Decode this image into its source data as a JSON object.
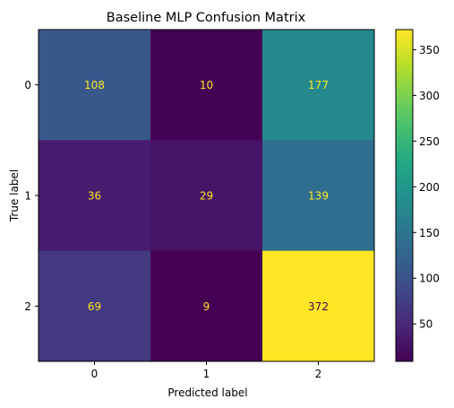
{
  "chart_data": {
    "type": "heatmap",
    "title": "Baseline MLP Confusion Matrix",
    "xlabel": "Predicted label",
    "ylabel": "True label",
    "x_categories": [
      "0",
      "1",
      "2"
    ],
    "y_categories": [
      "0",
      "1",
      "2"
    ],
    "values": [
      [
        108,
        10,
        177
      ],
      [
        36,
        29,
        139
      ],
      [
        69,
        9,
        372
      ]
    ],
    "colormap": "viridis",
    "colorbar": {
      "min": 9,
      "max": 372,
      "ticks": [
        50,
        100,
        150,
        200,
        250,
        300,
        350
      ],
      "tick_labels": [
        "50",
        "100",
        "150",
        "200",
        "250",
        "300",
        "350"
      ]
    },
    "text_colors": {
      "low": "#fde725",
      "high": "#440154"
    },
    "grid": false
  }
}
